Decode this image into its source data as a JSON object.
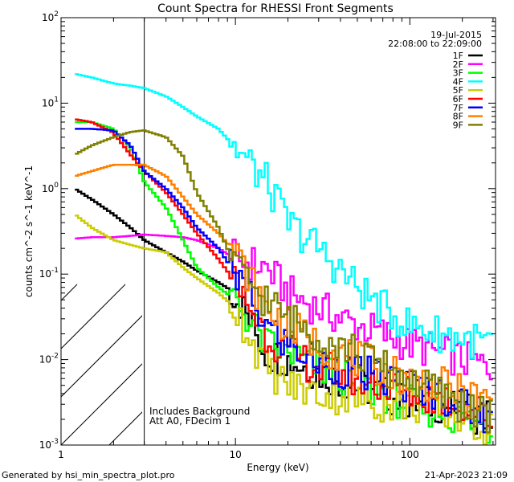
{
  "chart_data": {
    "type": "line",
    "title": "Count Spectra for RHESSI Front Segments",
    "xlabel": "Energy (keV)",
    "ylabel": "counts cm^-2 s^-1 keV^-1",
    "xscale": "log",
    "yscale": "log",
    "xlim": [
      1,
      310
    ],
    "ylim": [
      0.001,
      100
    ],
    "x_ticks": [
      "1",
      "10",
      "100"
    ],
    "y_ticks": [
      "10^-3",
      "10^-2",
      "10^-1",
      "10^0",
      "10^1",
      "10^2"
    ],
    "hatched_region_keV": [
      1,
      3
    ],
    "date": "19-Jul-2015",
    "time_range": "22:08:00 to 22:09:00",
    "annotations": [
      "Includes Background",
      "Att A0, FDecim 1"
    ],
    "footer_left": "Generated by hsi_min_spectra_plot.pro",
    "footer_right": "21-Apr-2023 21:09",
    "energies": [
      1.2,
      1.5,
      2,
      2.5,
      3,
      4,
      5,
      6,
      8,
      10,
      15,
      20,
      30,
      50,
      70,
      100,
      150,
      200,
      300
    ],
    "series": [
      {
        "name": "1F",
        "color": "#000000",
        "values": [
          1.0,
          0.75,
          0.5,
          0.35,
          0.25,
          0.18,
          0.14,
          0.11,
          0.08,
          0.06,
          0.012,
          0.01,
          0.007,
          0.005,
          0.004,
          0.003,
          0.003,
          0.0025,
          0.002
        ]
      },
      {
        "name": "2F",
        "color": "#ff00ff",
        "values": [
          0.26,
          0.27,
          0.27,
          0.28,
          0.29,
          0.28,
          0.27,
          0.25,
          0.2,
          0.15,
          0.12,
          0.06,
          0.04,
          0.025,
          0.02,
          0.015,
          0.012,
          0.01,
          0.008
        ]
      },
      {
        "name": "3F",
        "color": "#00ff00",
        "values": [
          6.0,
          6.0,
          5.0,
          3.0,
          1.2,
          0.6,
          0.25,
          0.12,
          0.07,
          0.05,
          0.015,
          0.012,
          0.008,
          0.005,
          0.004,
          0.003,
          0.0025,
          0.002,
          0.0015
        ]
      },
      {
        "name": "4F",
        "color": "#00ffff",
        "values": [
          22,
          20,
          17,
          16,
          15,
          12,
          9,
          7,
          5,
          3,
          1.2,
          0.4,
          0.2,
          0.07,
          0.04,
          0.025,
          0.02,
          0.018,
          0.015
        ]
      },
      {
        "name": "5F",
        "color": "#cccc00",
        "values": [
          0.5,
          0.35,
          0.25,
          0.22,
          0.2,
          0.18,
          0.12,
          0.09,
          0.06,
          0.04,
          0.008,
          0.005,
          0.004,
          0.0035,
          0.003,
          0.003,
          0.0025,
          0.002,
          0.0015
        ]
      },
      {
        "name": "6F",
        "color": "#ff0000",
        "values": [
          6.5,
          6.0,
          4.5,
          2.5,
          1.6,
          0.9,
          0.5,
          0.3,
          0.15,
          0.08,
          0.02,
          0.012,
          0.008,
          0.006,
          0.005,
          0.004,
          0.0035,
          0.003,
          0.002
        ]
      },
      {
        "name": "7F",
        "color": "#0000ff",
        "values": [
          5.0,
          5.0,
          4.8,
          3.2,
          1.6,
          1.0,
          0.6,
          0.35,
          0.2,
          0.1,
          0.025,
          0.015,
          0.009,
          0.007,
          0.006,
          0.005,
          0.004,
          0.003,
          0.002
        ]
      },
      {
        "name": "8F",
        "color": "#ff8000",
        "values": [
          1.4,
          1.6,
          1.9,
          1.9,
          1.9,
          1.4,
          0.8,
          0.5,
          0.3,
          0.18,
          0.04,
          0.025,
          0.015,
          0.01,
          0.008,
          0.006,
          0.005,
          0.004,
          0.003
        ]
      },
      {
        "name": "9F",
        "color": "#808000",
        "values": [
          2.5,
          3.2,
          4.0,
          4.6,
          4.8,
          4.0,
          2.4,
          0.9,
          0.35,
          0.12,
          0.05,
          0.03,
          0.02,
          0.012,
          0.008,
          0.006,
          0.004,
          0.003,
          0.002
        ]
      }
    ]
  }
}
